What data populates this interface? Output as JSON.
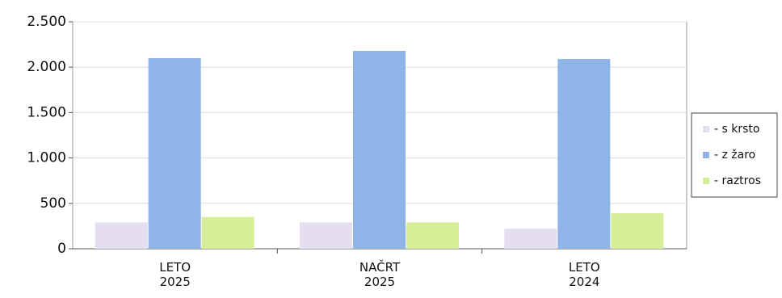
{
  "chart_data": {
    "type": "bar",
    "categories": [
      "LETO 2025",
      "NAČRT 2025",
      "LETO 2024"
    ],
    "series": [
      {
        "name": "- s krsto",
        "color": "#e4def0",
        "values": [
          290,
          290,
          220
        ]
      },
      {
        "name": "- z žaro",
        "color": "#8fb4e8",
        "values": [
          2100,
          2180,
          2090
        ]
      },
      {
        "name": "- raztros",
        "color": "#d6ee98",
        "values": [
          350,
          290,
          390
        ]
      }
    ],
    "ylim": [
      0,
      2500
    ],
    "yticks": [
      0,
      500,
      {
        "value": 1000,
        "label": "1.000"
      },
      {
        "value": 1500,
        "label": "1.500"
      },
      {
        "value": 2000,
        "label": "2.000"
      },
      {
        "value": 2500,
        "label": "2.500"
      }
    ],
    "grid": true,
    "legend": "right"
  }
}
